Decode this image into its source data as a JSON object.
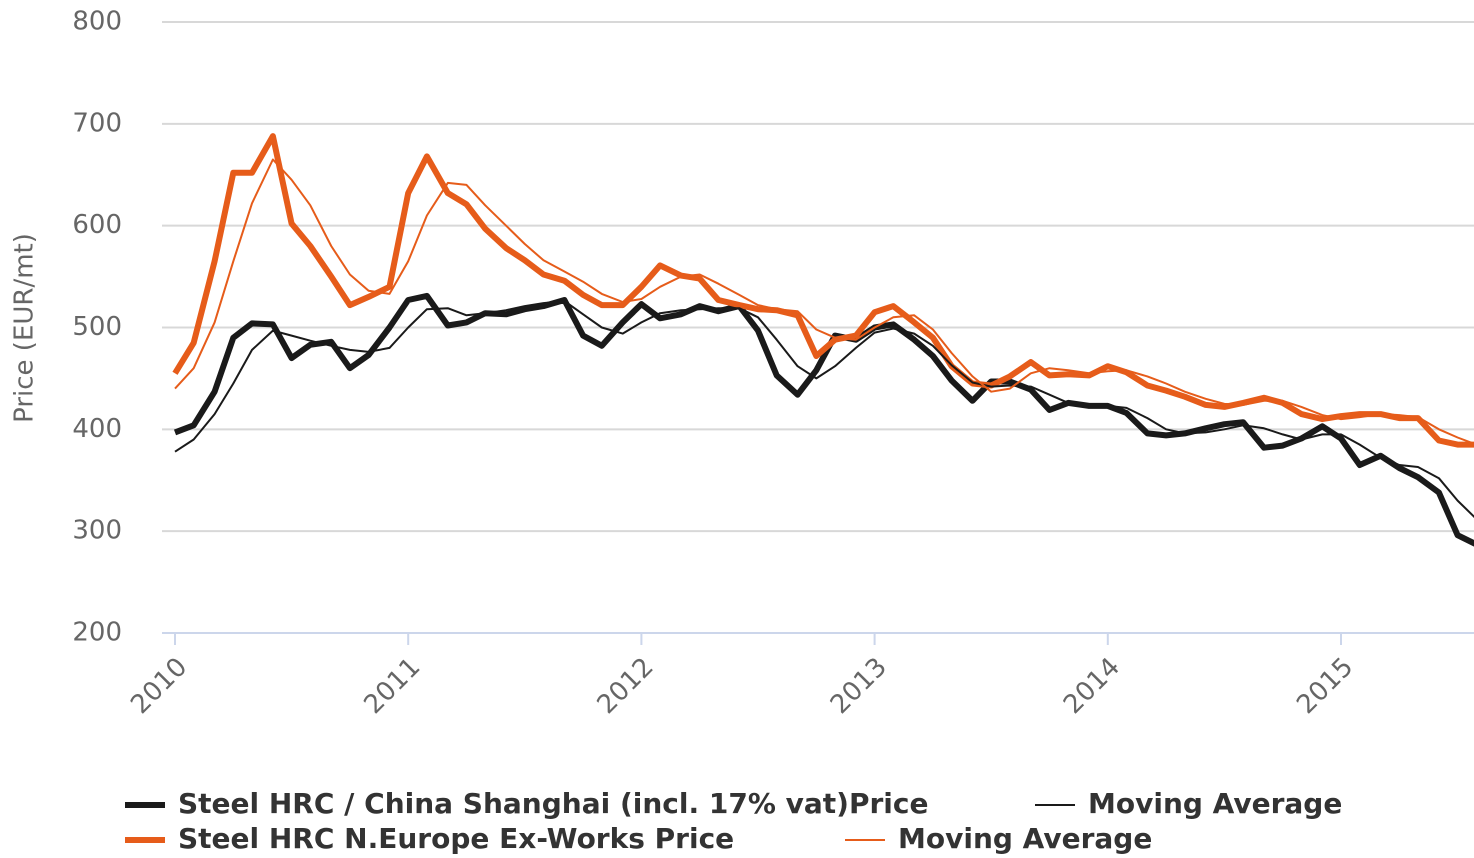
{
  "chart_data": {
    "type": "line",
    "y_label": "Price (EUR/mt)",
    "x": [
      2010,
      2010.08,
      2010.17,
      2010.25,
      2010.33,
      2010.42,
      2010.5,
      2010.58,
      2010.67,
      2010.75,
      2010.83,
      2010.92,
      2011,
      2011.08,
      2011.17,
      2011.25,
      2011.33,
      2011.42,
      2011.5,
      2011.58,
      2011.67,
      2011.75,
      2011.83,
      2011.92,
      2012,
      2012.08,
      2012.17,
      2012.25,
      2012.33,
      2012.42,
      2012.5,
      2012.58,
      2012.67,
      2012.75,
      2012.83,
      2012.92,
      2013,
      2013.08,
      2013.17,
      2013.25,
      2013.33,
      2013.42,
      2013.5,
      2013.58,
      2013.67,
      2013.75,
      2013.83,
      2013.92,
      2014,
      2014.08,
      2014.17,
      2014.25,
      2014.33,
      2014.42,
      2014.5,
      2014.58,
      2014.67,
      2014.75,
      2014.83,
      2014.92,
      2015,
      2015.08,
      2015.17,
      2015.25,
      2015.33,
      2015.42,
      2015.5,
      2015.58
    ],
    "series": [
      {
        "name": "Steel HRC / China Shanghai (incl. 17% vat)Price",
        "color": "#1a1a1a",
        "line_width": 6,
        "values": [
          397,
          404,
          437,
          490,
          504,
          503,
          470,
          483,
          486,
          460,
          473,
          500,
          527,
          531,
          502,
          505,
          514,
          513,
          518,
          521,
          527,
          492,
          482,
          505,
          523,
          509,
          513,
          521,
          516,
          521,
          497,
          453,
          434,
          458,
          492,
          488,
          500,
          503,
          488,
          472,
          448,
          428,
          447,
          447,
          439,
          419,
          426,
          423,
          423,
          416,
          396,
          394,
          396,
          401,
          405,
          407,
          382,
          384,
          391,
          403,
          391,
          365,
          374,
          362,
          353,
          338,
          296,
          287
        ]
      },
      {
        "name": "Moving Average",
        "color": "#1a1a1a",
        "line_width": 2,
        "values": [
          378,
          390,
          415,
          445,
          478,
          497,
          492,
          487,
          482,
          478,
          476,
          480,
          500,
          518,
          519,
          512,
          514,
          517,
          521,
          524,
          526,
          513,
          500,
          494,
          505,
          514,
          517,
          518,
          519,
          519,
          510,
          488,
          462,
          450,
          462,
          480,
          495,
          499,
          494,
          482,
          463,
          446,
          442,
          443,
          442,
          434,
          426,
          423,
          423,
          421,
          411,
          400,
          396,
          397,
          400,
          404,
          401,
          395,
          390,
          395,
          395,
          385,
          372,
          365,
          363,
          352,
          330,
          312
        ]
      },
      {
        "name": "Steel HRC N.Europe Ex-Works Price",
        "color": "#e65c1a",
        "line_width": 6,
        "values": [
          455,
          485,
          565,
          652,
          652,
          688,
          602,
          580,
          550,
          522,
          530,
          540,
          632,
          668,
          632,
          621,
          597,
          578,
          566,
          552,
          546,
          532,
          522,
          522,
          540,
          561,
          551,
          548,
          527,
          522,
          518,
          517,
          512,
          472,
          488,
          492,
          515,
          521,
          505,
          490,
          462,
          445,
          443,
          452,
          466,
          453,
          454,
          453,
          462,
          456,
          443,
          438,
          432,
          424,
          422,
          426,
          431,
          426,
          415,
          410,
          413,
          415,
          415,
          411,
          411,
          389,
          385,
          385
        ]
      },
      {
        "name": "Moving Average",
        "color": "#e65c1a",
        "line_width": 2,
        "values": [
          440,
          460,
          505,
          565,
          622,
          665,
          645,
          620,
          580,
          552,
          536,
          533,
          565,
          610,
          642,
          640,
          620,
          600,
          582,
          566,
          555,
          545,
          533,
          525,
          528,
          540,
          550,
          552,
          543,
          532,
          522,
          518,
          516,
          498,
          490,
          488,
          500,
          510,
          512,
          498,
          475,
          452,
          437,
          440,
          455,
          460,
          458,
          455,
          457,
          458,
          452,
          445,
          437,
          430,
          425,
          424,
          428,
          428,
          422,
          414,
          410,
          412,
          415,
          414,
          412,
          400,
          392,
          385
        ]
      }
    ],
    "xlim": [
      2010,
      2015.58
    ],
    "xticks": [
      2010,
      2011,
      2012,
      2013,
      2014,
      2015
    ],
    "ylim": [
      200,
      800
    ],
    "yticks": [
      200,
      300,
      400,
      500,
      600,
      700,
      800
    ],
    "grid": true,
    "legend": "bottom"
  }
}
